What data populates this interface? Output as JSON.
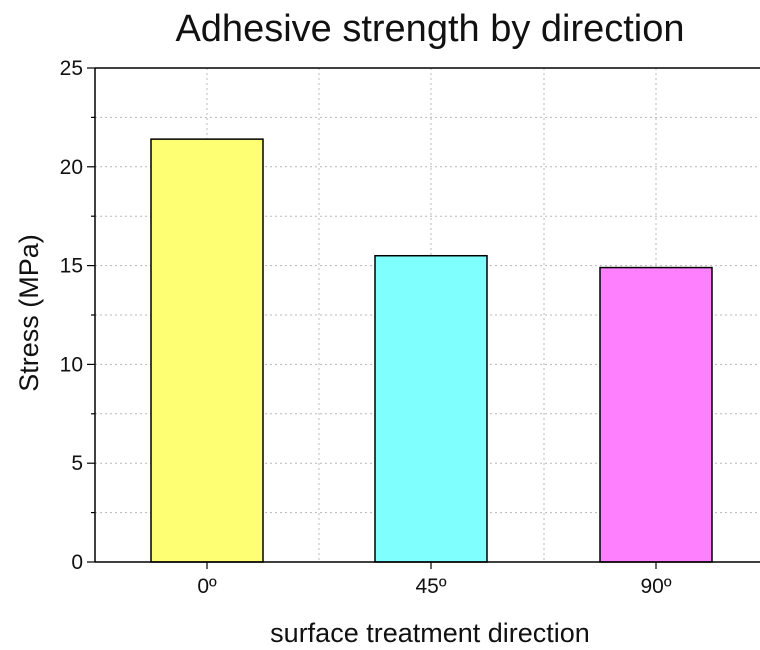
{
  "chart_data": {
    "type": "bar",
    "title": "Adhesive strength by direction",
    "xlabel": "surface treatment direction",
    "ylabel": "Stress (MPa)",
    "categories": [
      "0º",
      "45º",
      "90º"
    ],
    "values": [
      21.4,
      15.5,
      14.9
    ],
    "bar_colors": [
      "#ffff73",
      "#80ffff",
      "#ff80ff"
    ],
    "ylim": [
      0,
      25
    ],
    "yticks": [
      0,
      5,
      10,
      15,
      20,
      25
    ],
    "grid": true,
    "legend": "none"
  }
}
